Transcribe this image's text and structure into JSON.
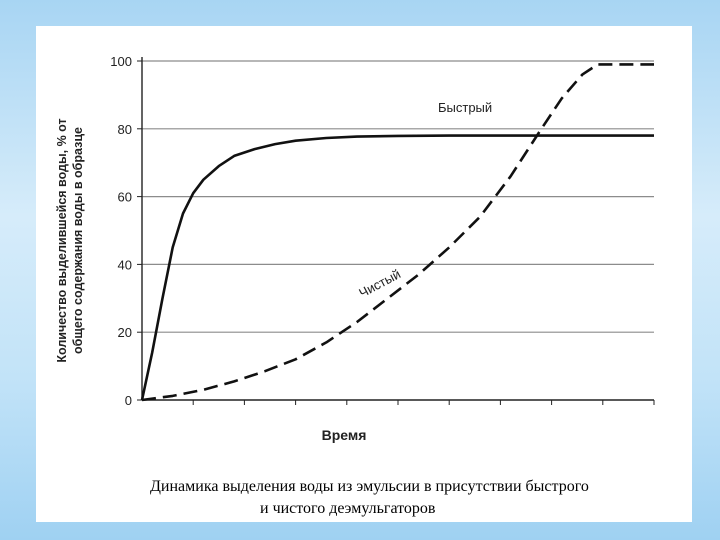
{
  "chart_data": {
    "type": "line",
    "title": "",
    "xlabel": "Время",
    "ylabel_line1": "Количество выделившейся воды, % от",
    "ylabel_line2": "общего содержания воды в образце",
    "ylim": [
      0,
      100
    ],
    "yticks": [
      "0",
      "20",
      "40",
      "60",
      "80",
      "100"
    ],
    "grid": "horizontal",
    "x": [
      0,
      0.02,
      0.04,
      0.06,
      0.08,
      0.1,
      0.12,
      0.15,
      0.18,
      0.22,
      0.26,
      0.3,
      0.36,
      0.42,
      0.5,
      0.6,
      0.7,
      0.8,
      0.9,
      1.0
    ],
    "series": [
      {
        "name": "Быстрый",
        "style": "solid",
        "values": [
          0,
          14,
          30,
          45,
          55,
          61,
          65,
          69,
          72,
          74,
          75.5,
          76.5,
          77.3,
          77.7,
          77.9,
          78,
          78,
          78,
          78,
          78
        ]
      },
      {
        "name": "Чистый",
        "style": "dashed",
        "x": [
          0,
          0.06,
          0.12,
          0.18,
          0.24,
          0.3,
          0.36,
          0.42,
          0.48,
          0.54,
          0.6,
          0.66,
          0.72,
          0.78,
          0.82,
          0.86,
          0.89,
          0.91,
          0.94,
          1.0
        ],
        "values": [
          0,
          1.2,
          3,
          5.5,
          8.5,
          12,
          17,
          23,
          30,
          37,
          45,
          54,
          66,
          80,
          89,
          96,
          99,
          99,
          99,
          99
        ]
      }
    ]
  },
  "caption": {
    "line1": "Динамика выделения воды из эмульсии в присутствии быстрого",
    "line2": "и чистого деэмульгаторов"
  },
  "colors": {
    "line": "#111111",
    "grid": "#8c8c8c",
    "background": "#ffffff"
  }
}
